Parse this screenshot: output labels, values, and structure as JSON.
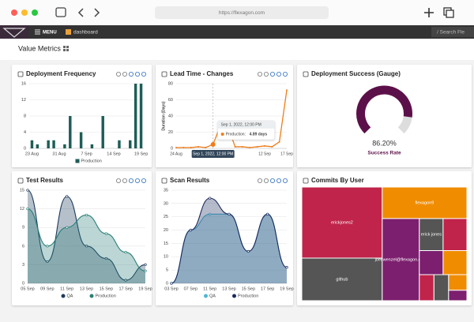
{
  "browser": {
    "url": "https://flexagon.com"
  },
  "nav": {
    "menu": "MENU",
    "page": "dashboard",
    "search": "/ Search Fle"
  },
  "header": {
    "title": "Value Metrics"
  },
  "chart_data": [
    {
      "type": "bar",
      "title": "Deployment Frequency",
      "categories": [
        "23 Aug",
        null,
        null,
        null,
        null,
        "31 Aug",
        null,
        null,
        null,
        null,
        "7 Sep",
        null,
        null,
        null,
        null,
        "14 Sep",
        null,
        null,
        null,
        null,
        "19 Sep"
      ],
      "series": [
        {
          "name": "Production",
          "color": "#1d5e57",
          "values": [
            2,
            1,
            0,
            2,
            2,
            0,
            1,
            8,
            0,
            4,
            0,
            1,
            0,
            8,
            0,
            0,
            2,
            0,
            2,
            16,
            16
          ]
        }
      ],
      "ylim": [
        0,
        16
      ],
      "yticks": [
        0,
        4,
        8,
        12,
        16
      ],
      "grid": true
    },
    {
      "type": "line",
      "title": "Lead Time - Changes",
      "y_label": "Duration (Days)",
      "categories": [
        "24 Aug",
        null,
        null,
        null,
        null,
        "Sep 1, 2022, 12:00 PM",
        null,
        null,
        null,
        null,
        null,
        null,
        "12 Sep",
        null,
        null,
        "17 Sep"
      ],
      "series": [
        {
          "name": "Production",
          "color": "#f07d1a",
          "values": [
            1,
            1,
            1,
            2,
            1,
            4.89,
            28,
            27,
            2,
            2,
            1,
            2,
            3,
            2,
            8,
            72
          ]
        }
      ],
      "ylim": [
        0,
        80
      ],
      "yticks": [
        0,
        20,
        40,
        60,
        80
      ],
      "grid": true,
      "tooltip": {
        "index": 5,
        "label": "Production:",
        "value_label": "4.89 days"
      }
    },
    {
      "type": "gauge",
      "title": "Deployment Success (Gauge)",
      "value": 86.2,
      "value_label": "86.20%",
      "label": "Success Rate",
      "range": [
        0,
        100
      ],
      "color": "#5c1049",
      "track_color": "#dddddd"
    },
    {
      "type": "area",
      "title": "Test Results",
      "categories": [
        "05 Sep",
        "09 Sep",
        "11 Sep",
        "13 Sep",
        "15 Sep",
        "17 Sep",
        "19 Sep"
      ],
      "series": [
        {
          "name": "QA",
          "color": "#1b3a5c",
          "values": [
            15,
            3.5,
            14,
            6,
            4,
            0.5,
            3
          ]
        },
        {
          "name": "Production",
          "color": "#2a7f78",
          "values": [
            12,
            6,
            9,
            11,
            8,
            5,
            2
          ]
        }
      ],
      "ylim": [
        0,
        15
      ],
      "yticks": [
        0,
        3,
        6,
        9,
        12,
        15
      ],
      "grid": true
    },
    {
      "type": "area",
      "title": "Scan Results",
      "categories": [
        "03 Sep",
        "07 Sep",
        "11 Sep",
        "13 Sep",
        "15 Sep",
        "17 Sep",
        "19 Sep"
      ],
      "series": [
        {
          "name": "QA",
          "color": "#4fb6d6",
          "values": [
            0,
            20,
            26,
            26,
            12,
            26,
            6
          ]
        },
        {
          "name": "Production",
          "color": "#1b2a5c",
          "values": [
            0,
            20,
            32,
            26,
            12,
            26,
            6
          ]
        }
      ],
      "ylim": [
        0,
        35
      ],
      "yticks": [
        0,
        5,
        10,
        15,
        20,
        25,
        30,
        35
      ],
      "grid": true
    },
    {
      "type": "treemap",
      "title": "Commits By User",
      "items": [
        {
          "name": "erickjones2",
          "value": 30,
          "color": "#c0244a"
        },
        {
          "name": "github",
          "value": 18,
          "color": "#555555"
        },
        {
          "name": "flexagon9",
          "value": 14,
          "color": "#f08c00"
        },
        {
          "name": "joel.wenzel@flexagon.com",
          "value": 16,
          "color": "#7b1f6e"
        },
        {
          "name": "erick jones",
          "value": 4,
          "color": "#555555"
        },
        {
          "name": null,
          "value": 4,
          "color": "#c0244a"
        },
        {
          "name": null,
          "value": 3,
          "color": "#7b1f6e"
        },
        {
          "name": null,
          "value": 3,
          "color": "#f08c00"
        },
        {
          "name": null,
          "value": 2,
          "color": "#c0244a"
        },
        {
          "name": null,
          "value": 2,
          "color": "#555555"
        },
        {
          "name": null,
          "value": 1.5,
          "color": "#f08c00"
        },
        {
          "name": null,
          "value": 1,
          "color": "#7b1f6e"
        }
      ]
    }
  ]
}
